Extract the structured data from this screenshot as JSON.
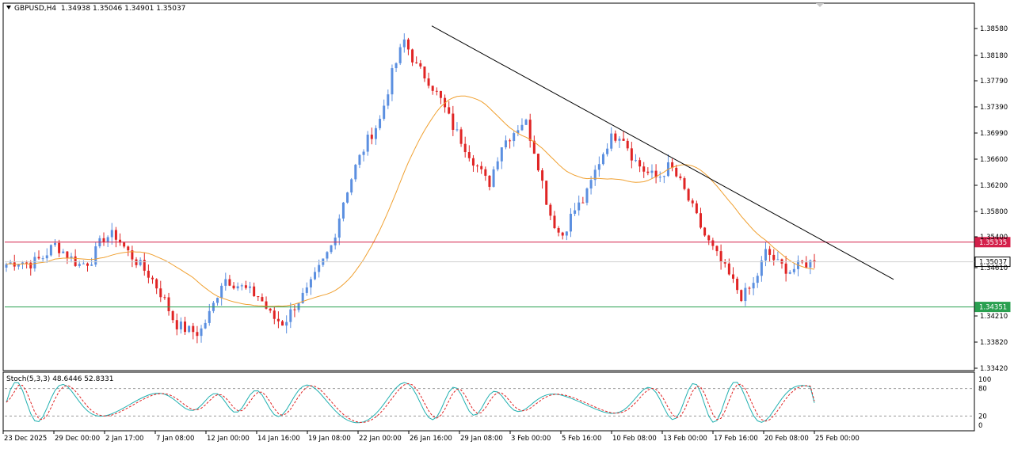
{
  "header": {
    "symbol": "GBPUSD,H4",
    "open": "1.34938",
    "high": "1.35046",
    "low": "1.34901",
    "close": "1.35037"
  },
  "indicator": {
    "name": "Stoch(5,3,3)",
    "main": "48.6446",
    "signal": "52.8331"
  },
  "colors": {
    "bull": "#5b8fe0",
    "bear": "#e02424",
    "ma": "#f0a030",
    "stoch_main": "#20b0b0",
    "stoch_signal": "#e02424",
    "resistance": "#d4204a",
    "support": "#2aa050",
    "current": "#cfcfcf"
  },
  "chart_data": {
    "type": "candlestick",
    "ylim": [
      1.3342,
      1.3872
    ],
    "y_ticks": [
      "1.38580",
      "1.38180",
      "1.37790",
      "1.37390",
      "1.36990",
      "1.36600",
      "1.36200",
      "1.35800",
      "1.35400",
      "1.34610",
      "1.34210",
      "1.33820",
      "1.33420"
    ],
    "x_ticks": [
      "23 Dec 2025",
      "29 Dec 00:00",
      "2 Jan 17:00",
      "7 Jan 08:00",
      "12 Jan 00:00",
      "14 Jan 16:00",
      "19 Jan 08:00",
      "22 Jan 00:00",
      "26 Jan 16:00",
      "29 Jan 08:00",
      "3 Feb 00:00",
      "5 Feb 16:00",
      "10 Feb 08:00",
      "13 Feb 00:00",
      "17 Feb 16:00",
      "20 Feb 08:00",
      "25 Feb 00:00"
    ],
    "horizontal_lines": [
      {
        "label": "1.35335",
        "value": 1.35335,
        "role": "resistance"
      },
      {
        "label": "1.35037",
        "value": 1.35037,
        "role": "current"
      },
      {
        "label": "1.34351",
        "value": 1.34351,
        "role": "support"
      }
    ],
    "trendline": {
      "from": [
        "26 Jan 00:00",
        1.3862
      ],
      "to": [
        "26 Feb 08:00",
        1.3477
      ]
    },
    "key_closes": [
      1.35,
      1.3505,
      1.3501,
      1.351,
      1.353,
      1.3515,
      1.3499,
      1.3505,
      1.354,
      1.3545,
      1.352,
      1.35,
      1.348,
      1.345,
      1.341,
      1.34,
      1.3395,
      1.343,
      1.348,
      1.347,
      1.346,
      1.345,
      1.342,
      1.341,
      1.344,
      1.346,
      1.3495,
      1.353,
      1.36,
      1.365,
      1.369,
      1.372,
      1.379,
      1.384,
      1.38,
      1.378,
      1.375,
      1.371,
      1.368,
      1.365,
      1.362,
      1.368,
      1.37,
      1.372,
      1.366,
      1.358,
      1.354,
      1.358,
      1.36,
      1.365,
      1.369,
      1.37,
      1.366,
      1.364,
      1.363,
      1.365,
      1.362,
      1.358,
      1.354,
      1.351,
      1.348,
      1.345,
      1.347,
      1.352,
      1.35,
      1.349,
      1.35,
      1.3504
    ],
    "stoch_ylim": [
      0,
      100
    ],
    "stoch_ticks": [
      "100",
      "80",
      "20",
      "0"
    ]
  }
}
